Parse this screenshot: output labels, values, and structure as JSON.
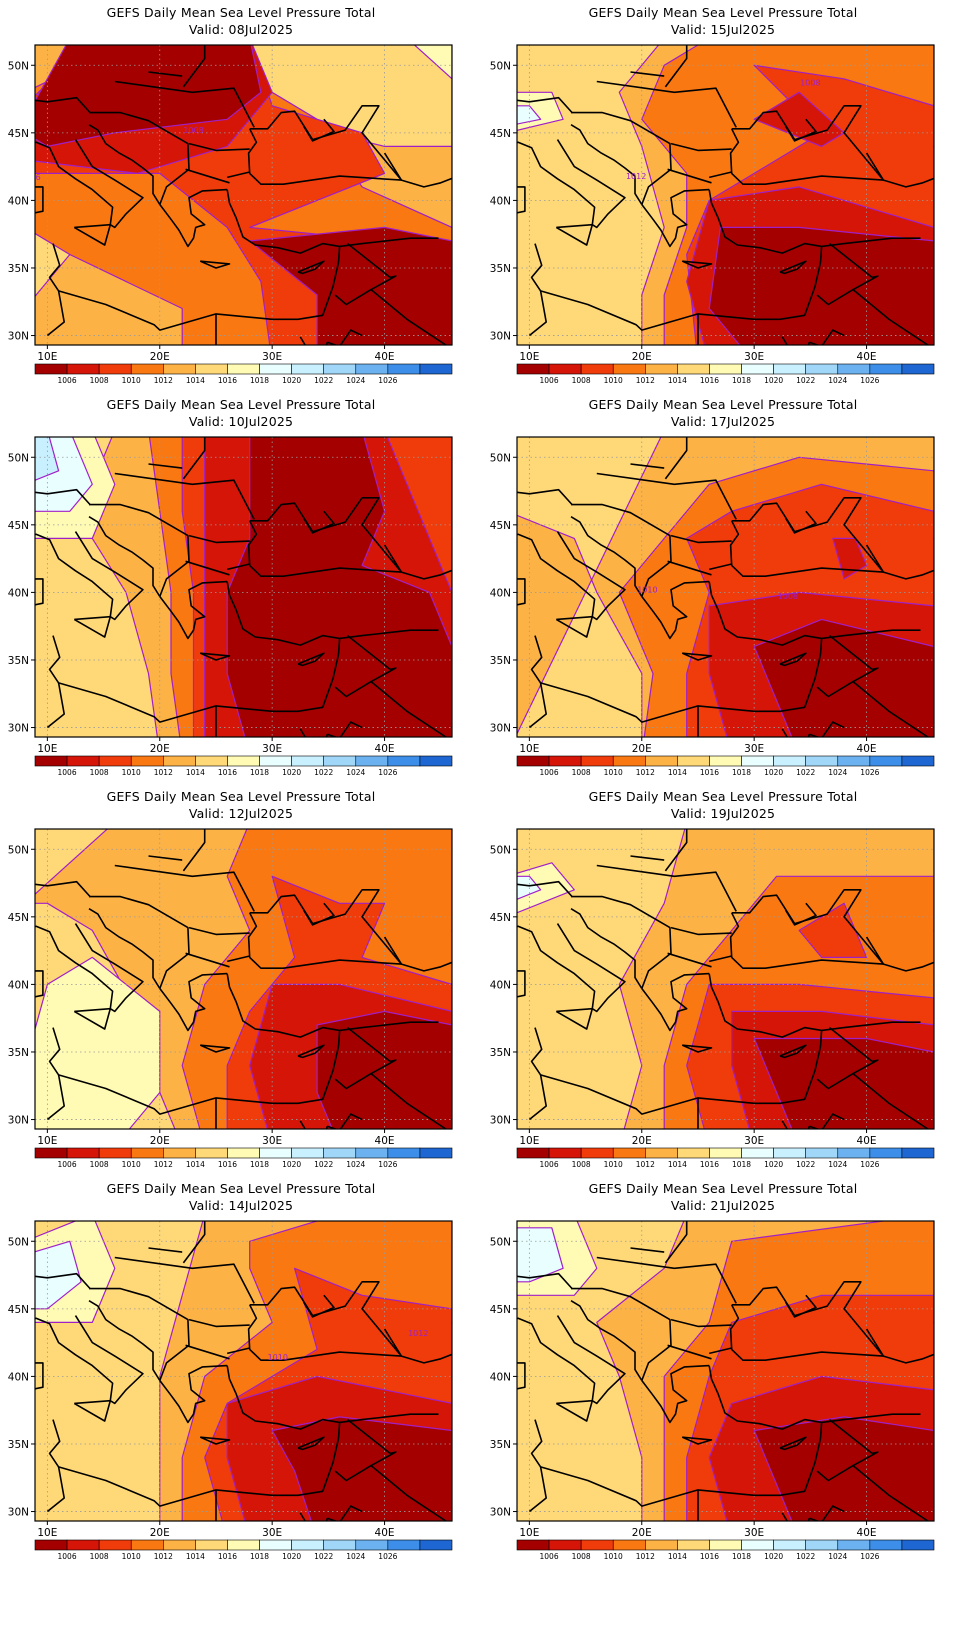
{
  "title": "GEFS Daily Mean Sea Level Pressure Total",
  "valid_prefix": "Valid:",
  "panels": [
    {
      "valid": "08Jul2025"
    },
    {
      "valid": "15Jul2025"
    },
    {
      "valid": "10Jul2025"
    },
    {
      "valid": "17Jul2025"
    },
    {
      "valid": "12Jul2025"
    },
    {
      "valid": "19Jul2025"
    },
    {
      "valid": "14Jul2025"
    },
    {
      "valid": "21Jul2025"
    }
  ],
  "lat_labels": [
    "50N",
    "45N",
    "40N",
    "35N",
    "30N"
  ],
  "lon_labels": [
    "10E",
    "20E",
    "30E",
    "40E"
  ],
  "colorbar": {
    "labels": [
      "1006",
      "1008",
      "1010",
      "1012",
      "1014",
      "1016",
      "1018",
      "1020",
      "1022",
      "1024",
      "1026"
    ],
    "colors": [
      "#a50000",
      "#d41508",
      "#f03c0a",
      "#fa7812",
      "#fdb246",
      "#ffd878",
      "#fffab4",
      "#e8feff",
      "#c8f0ff",
      "#a0d6f8",
      "#6cb2f0",
      "#3c8ee8",
      "#1e66d2"
    ]
  },
  "contour_labels": [
    {
      "panel": 0,
      "text": "1008"
    },
    {
      "panel": 0,
      "text": "1006"
    },
    {
      "panel": 1,
      "text": "1008"
    },
    {
      "panel": 1,
      "text": "1012"
    },
    {
      "panel": 3,
      "text": "1010"
    },
    {
      "panel": 3,
      "text": "1008"
    },
    {
      "panel": 6,
      "text": "1012"
    },
    {
      "panel": 6,
      "text": "1010"
    }
  ]
}
